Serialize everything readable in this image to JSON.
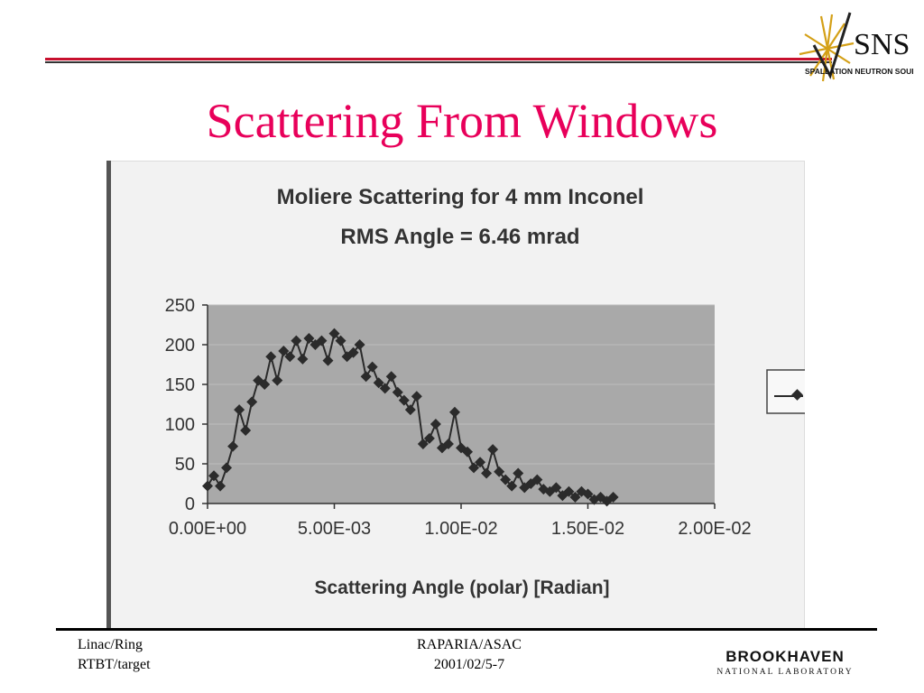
{
  "slide": {
    "title": "Scattering From Windows",
    "logo_top": {
      "name": "sns-logo",
      "word": "SNS",
      "subtitle": "SPALLATION NEUTRON SOURCE",
      "accent": "#d4a017"
    },
    "logo_bottom": {
      "name": "brookhaven-logo",
      "word": "BROOKHAVEN",
      "subtitle": "NATIONAL LABORATORY"
    },
    "footer": {
      "left": [
        "Linac/Ring",
        "RTBT/target"
      ],
      "center": [
        "RAPARIA/ASAC",
        "2001/02/5-7"
      ]
    },
    "colors": {
      "title": "#e8005a",
      "rule_red": "#c8102e",
      "plot_area": "#a9a9a9",
      "marker": "#2b2b2b"
    }
  },
  "chart_data": {
    "type": "line",
    "title": "Moliere Scattering for 4 mm Inconel",
    "subtitle": "RMS Angle = 6.46 mrad",
    "xlabel": "Scattering Angle (polar) [Radian]",
    "ylabel": "",
    "xlim": [
      0,
      0.02
    ],
    "ylim": [
      0,
      250
    ],
    "xticks": [
      0,
      0.005,
      0.01,
      0.015,
      0.02
    ],
    "xtick_labels": [
      "0.00E+00",
      "5.00E-03",
      "1.00E-02",
      "1.50E-02",
      "2.00E-02"
    ],
    "yticks": [
      0,
      50,
      100,
      150,
      200,
      250
    ],
    "ytick_labels": [
      "0",
      "50",
      "100",
      "150",
      "200",
      "250"
    ],
    "grid": true,
    "legend": "right",
    "series": [
      {
        "marker": "diamond",
        "x": [
          0.0,
          0.00025,
          0.0005,
          0.00075,
          0.001,
          0.00125,
          0.0015,
          0.00175,
          0.002,
          0.00225,
          0.0025,
          0.00275,
          0.003,
          0.00325,
          0.0035,
          0.00375,
          0.004,
          0.00425,
          0.0045,
          0.00475,
          0.005,
          0.00525,
          0.0055,
          0.00575,
          0.006,
          0.00625,
          0.0065,
          0.00675,
          0.007,
          0.00725,
          0.0075,
          0.00775,
          0.008,
          0.00825,
          0.0085,
          0.00875,
          0.009,
          0.00925,
          0.0095,
          0.00975,
          0.01,
          0.01025,
          0.0105,
          0.01075,
          0.011,
          0.01125,
          0.0115,
          0.01175,
          0.012,
          0.01225,
          0.0125,
          0.01275,
          0.013,
          0.01325,
          0.0135,
          0.01375,
          0.014,
          0.01425,
          0.0145,
          0.01475,
          0.015,
          0.01525,
          0.0155,
          0.01575,
          0.016
        ],
        "y": [
          22,
          35,
          22,
          45,
          72,
          118,
          92,
          128,
          155,
          150,
          185,
          155,
          192,
          185,
          205,
          182,
          208,
          200,
          205,
          180,
          214,
          205,
          185,
          190,
          200,
          160,
          172,
          152,
          145,
          160,
          140,
          130,
          118,
          135,
          75,
          82,
          100,
          70,
          75,
          115,
          70,
          65,
          45,
          52,
          38,
          68,
          40,
          30,
          22,
          38,
          20,
          25,
          30,
          18,
          15,
          20,
          10,
          15,
          8,
          15,
          12,
          5,
          8,
          3,
          8
        ]
      }
    ]
  }
}
